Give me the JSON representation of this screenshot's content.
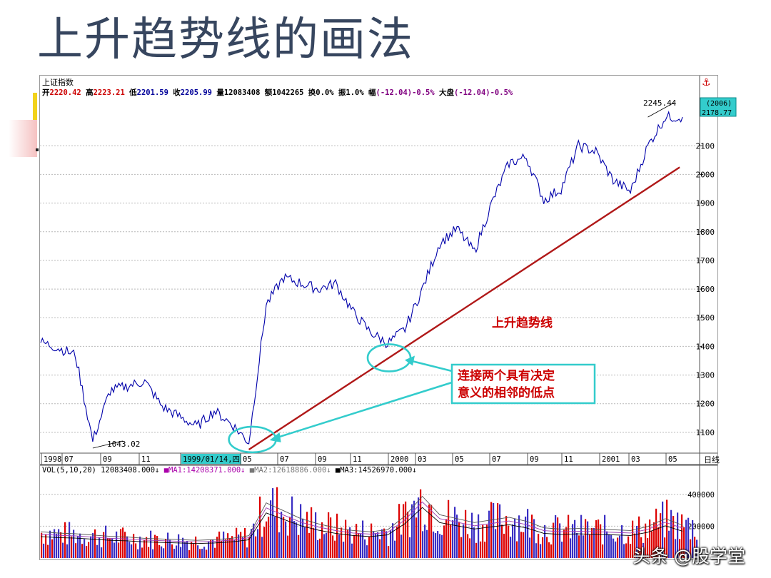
{
  "slide": {
    "title": "上升趋势线的画法",
    "watermark": "头条 @股学堂"
  },
  "header": {
    "index_name": "上证指数",
    "stats": [
      {
        "label": "开",
        "value": "2220.42",
        "color": "#cc0000"
      },
      {
        "label": "高",
        "value": "2223.21",
        "color": "#cc0000"
      },
      {
        "label": "低",
        "value": "2201.59",
        "color": "#000099"
      },
      {
        "label": "收",
        "value": "2205.99",
        "color": "#000099"
      },
      {
        "label": "量",
        "value": "12083408",
        "color": "#000000"
      },
      {
        "label": "额",
        "value": "1042265",
        "color": "#000000"
      },
      {
        "label": "换",
        "value": "0.0%",
        "color": "#000000"
      },
      {
        "label": "振",
        "value": "1.0%",
        "color": "#000000"
      },
      {
        "label": "幅",
        "value": "(-12.04)-0.5%",
        "color": "#800080"
      },
      {
        "label": "大盘",
        "value": "(-12.04)-0.5%",
        "color": "#800080"
      }
    ],
    "anchor_icon": "anchor-icon"
  },
  "price_panel": {
    "current_box_label": "(2006)",
    "current_box_value": "2178.77",
    "high_label": "2245.44",
    "low_label": "1043.02"
  },
  "volume_panel": {
    "label": "VOL(5,10,20) 12083408.000",
    "ma1": "MA1:14208371.000",
    "ma2": "MA2:12618886.000",
    "ma3": "MA3:14526970.000",
    "ticks": [
      "400000",
      "200000"
    ]
  },
  "x_axis": {
    "labels": [
      "1998",
      "07",
      "09",
      "11",
      "1999/01/14,四",
      "05",
      "07",
      "09",
      "11",
      "2000",
      "03",
      "05",
      "07",
      "09",
      "11",
      "2001",
      "03",
      "05"
    ],
    "period": "日线"
  },
  "annotations": {
    "trendline_label": "上升趋势线",
    "callout_line1": "连接两个具有决定",
    "callout_line2": "意义的相邻的低点"
  },
  "colors": {
    "price_line": "#0000aa",
    "trendline": "#b01818",
    "ellipse": "#33cccc",
    "grid": "#b9b9b9",
    "vol_up": "#dd0000",
    "vol_down": "#3a2fc4"
  },
  "chart_data": {
    "type": "line",
    "title": "上证指数",
    "period": "日线",
    "x": [
      "1998-05",
      "1998-06",
      "1998-07",
      "1998-08",
      "1998-09",
      "1998-10",
      "1998-11",
      "1998-12",
      "1999-01",
      "1999-02",
      "1999-03",
      "1999-04",
      "1999-05",
      "1999-06",
      "1999-07",
      "1999-08",
      "1999-09",
      "1999-10",
      "1999-11",
      "1999-12",
      "2000-01",
      "2000-02",
      "2000-03",
      "2000-04",
      "2000-05",
      "2000-06",
      "2000-07",
      "2000-08",
      "2000-09",
      "2000-10",
      "2000-11",
      "2000-12",
      "2001-01",
      "2001-02",
      "2001-03",
      "2001-04",
      "2001-05",
      "2001-06"
    ],
    "series": [
      {
        "values": [
          1415,
          1395,
          1370,
          1070,
          1245,
          1262,
          1278,
          1190,
          1155,
          1120,
          1175,
          1130,
          1065,
          1545,
          1640,
          1620,
          1600,
          1620,
          1520,
          1450,
          1410,
          1460,
          1600,
          1760,
          1810,
          1730,
          1900,
          2040,
          2060,
          1910,
          1950,
          2100,
          2080,
          1980,
          1940,
          2100,
          2200,
          2200
        ]
      }
    ],
    "volume": [
      200000,
      190000,
      185000,
      175000,
      165000,
      160000,
      150000,
      145000,
      140000,
      135000,
      140000,
      150000,
      170000,
      420000,
      360000,
      300000,
      260000,
      230000,
      210000,
      200000,
      215000,
      320000,
      470000,
      330000,
      300000,
      270000,
      290000,
      310000,
      280000,
      230000,
      220000,
      225000,
      220000,
      215000,
      210000,
      240000,
      300000,
      250000
    ],
    "trendline": {
      "from": {
        "x": "1999-05",
        "y": 1040
      },
      "to": {
        "x": "2001-06",
        "y": 2025
      }
    },
    "yticks": [
      1100,
      1200,
      1300,
      1400,
      1500,
      1600,
      1700,
      1800,
      1900,
      2000,
      2100
    ],
    "ylim": [
      1030,
      2270
    ],
    "grid": true
  }
}
